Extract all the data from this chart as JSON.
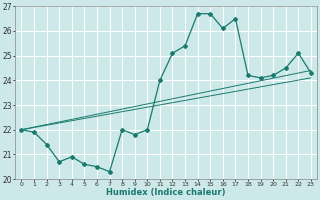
{
  "xlabel": "Humidex (Indice chaleur)",
  "bg_color": "#cce8e8",
  "grid_color": "#ffffff",
  "line_color": "#1a7a6e",
  "curve_x": [
    0,
    1,
    2,
    3,
    4,
    5,
    6,
    7,
    8,
    9,
    10,
    11,
    12,
    13,
    14,
    15,
    16,
    17,
    18,
    19,
    20,
    21,
    22,
    23
  ],
  "curve_y": [
    22.0,
    21.9,
    21.4,
    20.7,
    20.9,
    20.6,
    20.5,
    20.3,
    22.0,
    21.8,
    22.0,
    24.0,
    25.1,
    25.4,
    26.7,
    26.7,
    26.1,
    26.5,
    24.2,
    24.1,
    24.2,
    24.5,
    25.1,
    24.3
  ],
  "line2_x": [
    0,
    23
  ],
  "line2_y": [
    22.0,
    24.4
  ],
  "line3_x": [
    0,
    23
  ],
  "line3_y": [
    22.0,
    24.1
  ],
  "xlim": [
    -0.5,
    23.5
  ],
  "ylim": [
    20,
    27
  ],
  "xticks": [
    0,
    1,
    2,
    3,
    4,
    5,
    6,
    7,
    8,
    9,
    10,
    11,
    12,
    13,
    14,
    15,
    16,
    17,
    18,
    19,
    20,
    21,
    22,
    23
  ],
  "yticks": [
    20,
    21,
    22,
    23,
    24,
    25,
    26,
    27
  ]
}
